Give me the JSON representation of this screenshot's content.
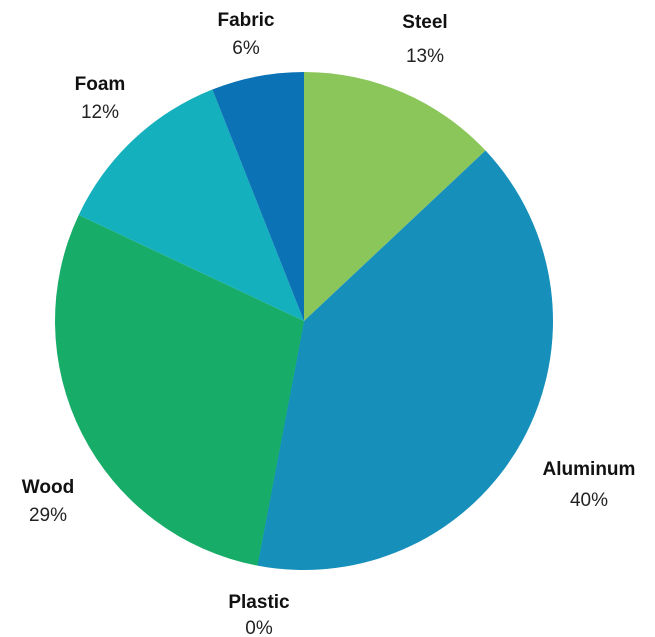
{
  "chart_data": {
    "type": "pie",
    "title": "",
    "start_angle_deg": 0,
    "direction": "clockwise",
    "slices": [
      {
        "name": "Steel",
        "value": 13,
        "label_pct": "13%",
        "color": "#8bc65b"
      },
      {
        "name": "Aluminum",
        "value": 40,
        "label_pct": "40%",
        "color": "#168fbb"
      },
      {
        "name": "Plastic",
        "value": 0,
        "label_pct": "0%",
        "color": "#14a88c"
      },
      {
        "name": "Wood",
        "value": 29,
        "label_pct": "29%",
        "color": "#17ad68"
      },
      {
        "name": "Foam",
        "value": 12,
        "label_pct": "12%",
        "color": "#14b0bd"
      },
      {
        "name": "Fabric",
        "value": 6,
        "label_pct": "6%",
        "color": "#0b72b6"
      }
    ]
  }
}
